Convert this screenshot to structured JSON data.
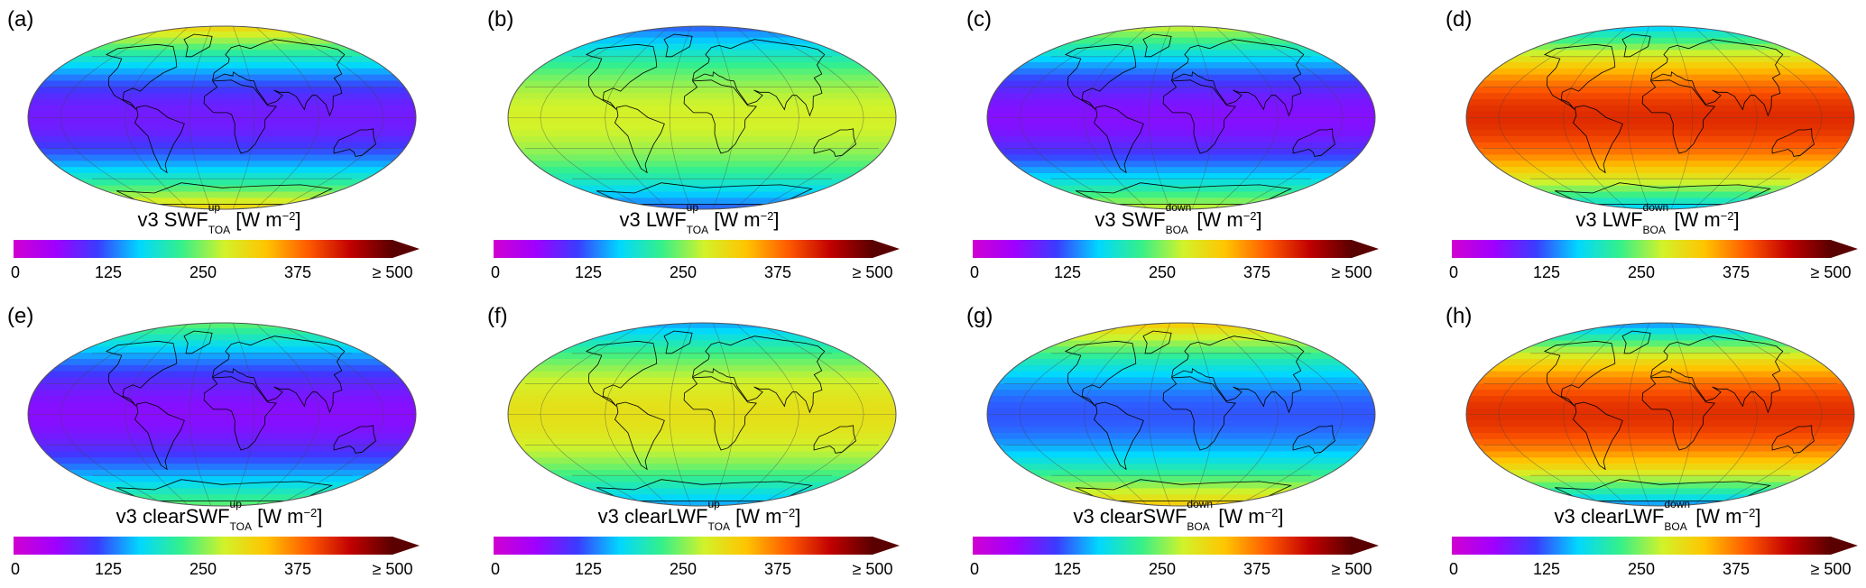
{
  "colors": {
    "scale": [
      "#d100d1",
      "#a000ff",
      "#3a3cff",
      "#00d8ff",
      "#35f08a",
      "#d2f22a",
      "#ffc400",
      "#ff5a00",
      "#c20000",
      "#5a0000"
    ],
    "map_outline": "#555555",
    "coastline": "#000000"
  },
  "colorbar": {
    "min": 0,
    "max": 500,
    "extend": "max",
    "ticks": [
      "0",
      "125",
      "250",
      "375",
      "≥ 500"
    ]
  },
  "panels": [
    {
      "letter": "(a)",
      "prefix": "v3 ",
      "base": "SWF",
      "sup": "up",
      "sub": "TOA",
      "unit": "[W m",
      "unit_exp": "−2",
      "unit_close": "]",
      "field_range": [
        0,
        400
      ]
    },
    {
      "letter": "(b)",
      "prefix": "v3 ",
      "base": "LWF",
      "sup": "up",
      "sub": "TOA",
      "unit": "[W m",
      "unit_exp": "−2",
      "unit_close": "]",
      "field_range": [
        100,
        300
      ]
    },
    {
      "letter": "(c)",
      "prefix": "v3 ",
      "base": "SWF",
      "sup": "down",
      "sub": "BOA",
      "unit": "[W m",
      "unit_exp": "−2",
      "unit_close": "]",
      "field_range": [
        0,
        350
      ]
    },
    {
      "letter": "(d)",
      "prefix": "v3 ",
      "base": "LWF",
      "sup": "down",
      "sub": "BOA",
      "unit": "[W m",
      "unit_exp": "−2",
      "unit_close": "]",
      "field_range": [
        125,
        450
      ]
    },
    {
      "letter": "(e)",
      "prefix": "v3 clear",
      "base": "SWF",
      "sup": "up",
      "sub": "TOA",
      "unit": "[W m",
      "unit_exp": "−2",
      "unit_close": "]",
      "field_range": [
        10,
        300
      ]
    },
    {
      "letter": "(f)",
      "prefix": "v3 clear",
      "base": "LWF",
      "sup": "up",
      "sub": "TOA",
      "unit": "[W m",
      "unit_exp": "−2",
      "unit_close": "]",
      "field_range": [
        125,
        320
      ]
    },
    {
      "letter": "(g)",
      "prefix": "v3 clear",
      "base": "SWF",
      "sup": "down",
      "sub": "BOA",
      "unit": "[W m",
      "unit_exp": "−2",
      "unit_close": "]",
      "field_range": [
        50,
        400
      ]
    },
    {
      "letter": "(h)",
      "prefix": "v3 clear",
      "base": "LWF",
      "sup": "down",
      "sub": "BOA",
      "unit": "[W m",
      "unit_exp": "−2",
      "unit_close": "]",
      "field_range": [
        100,
        450
      ]
    }
  ]
}
